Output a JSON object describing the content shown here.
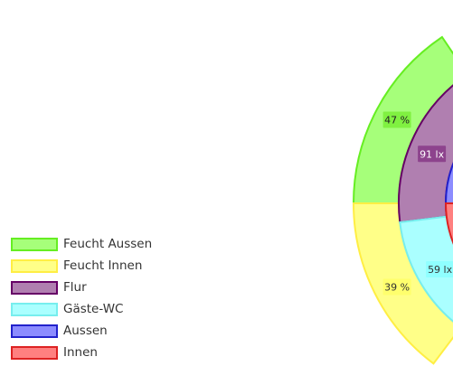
{
  "chart_data": {
    "type": "gauge",
    "title": "",
    "series": [
      {
        "name": "Feucht Aussen",
        "value": 47,
        "label": "47 %",
        "fill": "#a6ff7a",
        "stroke": "#66ee22",
        "label_bg": "#77ee33"
      },
      {
        "name": "Feucht Innen",
        "value": 39,
        "label": "39 %",
        "fill": "#ffff88",
        "stroke": "#ffee44",
        "label_bg": "#ffff66"
      },
      {
        "name": "Flur",
        "value": 91,
        "label": "91 lx",
        "fill": "#b07fb0",
        "stroke": "#660066",
        "label_bg": "#8a3d8a"
      },
      {
        "name": "Gäste-WC",
        "value": 59,
        "label": "59 lx",
        "fill": "#aaffff",
        "stroke": "#77eeee",
        "label_bg": "#88ffff"
      },
      {
        "name": "Aussen",
        "value": 0,
        "label": "",
        "fill": "#8c8cff",
        "stroke": "#2222cc",
        "label_bg": ""
      },
      {
        "name": "Innen",
        "value": 0,
        "label": "",
        "fill": "#ff8080",
        "stroke": "#dd2222",
        "label_bg": ""
      }
    ]
  }
}
